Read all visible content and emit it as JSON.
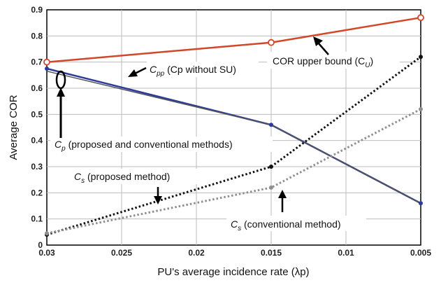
{
  "chart_data": {
    "type": "line",
    "x": [
      0.03,
      0.015,
      0.005
    ],
    "xlim": [
      0.03,
      0.005
    ],
    "x_reversed": true,
    "ylim": [
      0,
      0.9
    ],
    "xticks": [
      "0.03",
      "0.025",
      "0.02",
      "0.015",
      "0.01",
      "0.005"
    ],
    "yticks": [
      "0",
      "0.1",
      "0.2",
      "0.3",
      "0.4",
      "0.5",
      "0.6",
      "0.7",
      "0.8",
      "0.9"
    ],
    "xlabel": "PU's average incidence rate (λp)",
    "ylabel": "Average COR",
    "grid": true,
    "series": [
      {
        "name": "COR upper bound (CU)",
        "values": [
          0.7,
          0.775,
          0.87
        ],
        "color": "#d2472a",
        "style": "solid",
        "marker": "open-circle"
      },
      {
        "name": "Cpp (Cp without SU)",
        "values": [
          0.675,
          0.46,
          0.16
        ],
        "color": "#2b3a9c",
        "style": "solid",
        "marker": "dot"
      },
      {
        "name": "Cp (proposed and conventional methods)",
        "values": [
          0.665,
          0.46,
          0.16
        ],
        "color": "#555555",
        "style": "solid",
        "marker": "none"
      },
      {
        "name": "Cs (proposed method)",
        "values": [
          0.04,
          0.3,
          0.72
        ],
        "color": "#111111",
        "style": "dotted",
        "marker": "dot"
      },
      {
        "name": "Cs (conventional method)",
        "values": [
          0.045,
          0.22,
          0.52
        ],
        "color": "#8f8f8f",
        "style": "dotted",
        "marker": "dot"
      }
    ],
    "annotations": [
      {
        "id": "cu",
        "main": "COR upper bound (C",
        "sub": "U",
        "tail": ")"
      },
      {
        "id": "cpp",
        "main": "C",
        "sub": "pp",
        "tail": " (Cp without SU)"
      },
      {
        "id": "cp",
        "main": "C",
        "sub": "p",
        "tail": " (proposed and conventional methods)"
      },
      {
        "id": "cs_prop",
        "main": "C",
        "sub": "s",
        "tail": " (proposed method)"
      },
      {
        "id": "cs_conv",
        "main": "C",
        "sub": "s",
        "tail": " (conventional method)"
      }
    ]
  }
}
